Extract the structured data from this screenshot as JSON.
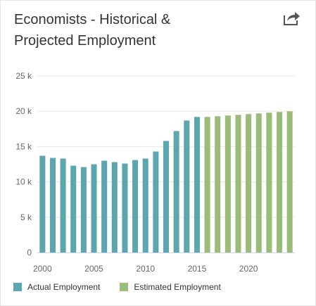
{
  "chart_data": {
    "type": "bar",
    "title_line1": "Economists - Historical &",
    "title_line2": "Projected Employment",
    "x": [
      2000,
      2001,
      2002,
      2003,
      2004,
      2005,
      2006,
      2007,
      2008,
      2009,
      2010,
      2011,
      2012,
      2013,
      2014,
      2015,
      2016,
      2017,
      2018,
      2019,
      2020,
      2021,
      2022,
      2023,
      2024
    ],
    "series": [
      {
        "name": "Actual Employment",
        "color": "#5ba7ad",
        "x": [
          2000,
          2001,
          2002,
          2003,
          2004,
          2005,
          2006,
          2007,
          2008,
          2009,
          2010,
          2011,
          2012,
          2013,
          2014,
          2015
        ],
        "values": [
          13700,
          13400,
          13300,
          12300,
          12100,
          12500,
          13000,
          12800,
          12600,
          13100,
          13300,
          14300,
          15800,
          17200,
          18700,
          19200
        ]
      },
      {
        "name": "Estimated Employment",
        "color": "#9bbb78",
        "x": [
          2016,
          2017,
          2018,
          2019,
          2020,
          2021,
          2022,
          2023,
          2024
        ],
        "values": [
          19200,
          19300,
          19400,
          19500,
          19600,
          19700,
          19800,
          19900,
          20000
        ]
      }
    ],
    "ylim": [
      0,
      25000
    ],
    "yticks": [
      0,
      5000,
      10000,
      15000,
      20000,
      25000
    ],
    "ytick_labels": [
      "0",
      "5 k",
      "10 k",
      "15 k",
      "20 k",
      "25 k"
    ],
    "xticks": [
      2000,
      2005,
      2010,
      2015,
      2020
    ],
    "xtick_labels": [
      "2000",
      "2005",
      "2010",
      "2015",
      "2020"
    ],
    "xlim": [
      1999.5,
      2024.5
    ],
    "grid": true,
    "legend_position": "bottom-left"
  },
  "toolbar": {
    "share_icon": "share-icon"
  },
  "colors": {
    "axis": "#ccd6eb",
    "grid": "#e6e6e6",
    "text": "#666666"
  }
}
